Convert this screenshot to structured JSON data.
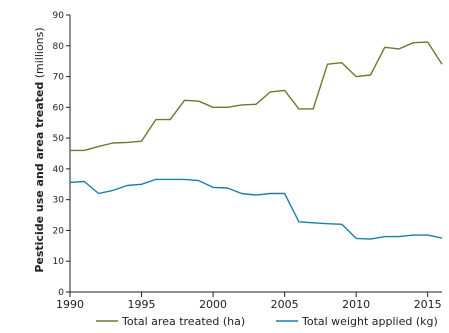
{
  "chart_data": {
    "type": "line",
    "title": "",
    "ylabel_bold": "Pesticide use and area treated",
    "ylabel_rest": " (millions)",
    "xlabel": "",
    "ylim": [
      0,
      90
    ],
    "xlim": [
      1990,
      2016
    ],
    "y_ticks": [
      0,
      10,
      20,
      30,
      40,
      50,
      60,
      70,
      80,
      90
    ],
    "x_ticks": [
      1990,
      1995,
      2000,
      2005,
      2010,
      2015
    ],
    "x_tick_labels": [
      "1990",
      "1995",
      "2000",
      "2005",
      "2010",
      "2015"
    ],
    "grid": false,
    "legend_position": "bottom",
    "x": [
      1990,
      1991,
      1992,
      1993,
      1994,
      1995,
      1996,
      1997,
      1998,
      1999,
      2000,
      2001,
      2002,
      2003,
      2004,
      2005,
      2006,
      2007,
      2008,
      2009,
      2010,
      2011,
      2012,
      2013,
      2014,
      2015,
      2016
    ],
    "series": [
      {
        "name": "Total area treated (ha)",
        "color": "#6b7a2e",
        "values": [
          46,
          46,
          47.3,
          48.4,
          48.6,
          49,
          56,
          56,
          62.3,
          62,
          60,
          60,
          60.8,
          61,
          65,
          65.5,
          59.5,
          59.5,
          74,
          74.5,
          70,
          70.5,
          79.5,
          79,
          81,
          81.2,
          74
        ]
      },
      {
        "name": "Total weight applied (kg)",
        "color": "#1a7fa6",
        "values": [
          35.6,
          35.9,
          32,
          33,
          34.6,
          35,
          36.6,
          36.6,
          36.6,
          36.2,
          34,
          33.8,
          32,
          31.5,
          32,
          32,
          22.8,
          22.5,
          22.2,
          22,
          17.4,
          17.2,
          18,
          18,
          18.5,
          18.5,
          17.5
        ]
      }
    ]
  }
}
